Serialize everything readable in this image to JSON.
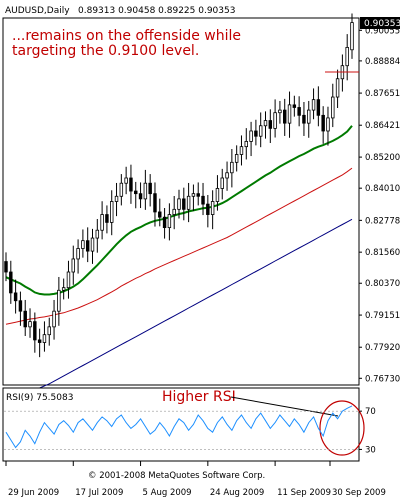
{
  "chart_data": [
    {
      "type": "candlestick",
      "symbol": "AUDUSD",
      "header": {
        "symbol_tf": "AUDUSD,Daily",
        "ohlc": "0.89313 0.90458 0.89225 0.90353"
      },
      "annotation": {
        "line1": "...remains on the offenside while",
        "line2": "targeting the 0.9100 level."
      },
      "last_price": "0.90353",
      "ylim": [
        0.7655,
        0.9045
      ],
      "y_ticks": [
        {
          "v": 0.90055,
          "label": "0.90055"
        },
        {
          "v": 0.88884,
          "label": "0.88884"
        },
        {
          "v": 0.87651,
          "label": "0.87651"
        },
        {
          "v": 0.86421,
          "label": "0.86421"
        },
        {
          "v": 0.852,
          "label": "0.85200"
        },
        {
          "v": 0.8401,
          "label": "0.84010"
        },
        {
          "v": 0.82778,
          "label": "0.82778"
        },
        {
          "v": 0.8156,
          "label": "0.81560"
        },
        {
          "v": 0.8037,
          "label": "0.80370"
        },
        {
          "v": 0.79151,
          "label": "0.79151"
        },
        {
          "v": 0.7792,
          "label": "0.77920"
        },
        {
          "v": 0.7673,
          "label": "0.76730"
        }
      ],
      "x_labels": [
        "29 Jun 2009",
        "17 Jul 2009",
        "5 Aug 2009",
        "24 Aug 2009",
        "11 Sep 2009",
        "30 Sep 2009"
      ],
      "x_label_index": [
        0,
        14,
        28,
        42,
        56,
        70
      ],
      "close": [
        0.808,
        0.8,
        0.797,
        0.793,
        0.787,
        0.789,
        0.782,
        0.781,
        0.784,
        0.787,
        0.793,
        0.801,
        0.802,
        0.808,
        0.813,
        0.817,
        0.82,
        0.816,
        0.821,
        0.824,
        0.83,
        0.827,
        0.835,
        0.837,
        0.842,
        0.844,
        0.839,
        0.838,
        0.836,
        0.842,
        0.838,
        0.831,
        0.829,
        0.825,
        0.83,
        0.832,
        0.836,
        0.832,
        0.837,
        0.838,
        0.837,
        0.834,
        0.83,
        0.835,
        0.84,
        0.844,
        0.846,
        0.85,
        0.853,
        0.856,
        0.858,
        0.862,
        0.86,
        0.864,
        0.866,
        0.863,
        0.869,
        0.87,
        0.865,
        0.872,
        0.871,
        0.868,
        0.865,
        0.87,
        0.874,
        0.868,
        0.862,
        0.867,
        0.875,
        0.882,
        0.887,
        0.894,
        0.9035
      ],
      "open": [
        0.812,
        0.808,
        0.8,
        0.797,
        0.793,
        0.787,
        0.789,
        0.782,
        0.781,
        0.784,
        0.787,
        0.793,
        0.801,
        0.802,
        0.808,
        0.813,
        0.817,
        0.82,
        0.816,
        0.821,
        0.824,
        0.83,
        0.827,
        0.835,
        0.837,
        0.842,
        0.844,
        0.839,
        0.838,
        0.836,
        0.842,
        0.838,
        0.831,
        0.829,
        0.825,
        0.83,
        0.832,
        0.836,
        0.832,
        0.837,
        0.838,
        0.837,
        0.834,
        0.83,
        0.835,
        0.84,
        0.844,
        0.846,
        0.85,
        0.853,
        0.856,
        0.858,
        0.862,
        0.86,
        0.864,
        0.866,
        0.863,
        0.869,
        0.87,
        0.865,
        0.872,
        0.871,
        0.868,
        0.865,
        0.87,
        0.874,
        0.868,
        0.862,
        0.867,
        0.875,
        0.882,
        0.887,
        0.8931
      ],
      "ma_green_label": "",
      "ma_green": [
        0.806,
        0.8052,
        0.8044,
        0.8036,
        0.8024,
        0.8014,
        0.8002,
        0.7996,
        0.7994,
        0.7994,
        0.7996,
        0.8,
        0.8006,
        0.8014,
        0.8024,
        0.8036,
        0.8052,
        0.807,
        0.8088,
        0.8106,
        0.8126,
        0.8146,
        0.8166,
        0.8186,
        0.8204,
        0.822,
        0.8234,
        0.8244,
        0.8252,
        0.8262,
        0.827,
        0.8276,
        0.828,
        0.8284,
        0.829,
        0.8296,
        0.8302,
        0.8306,
        0.8312,
        0.8316,
        0.832,
        0.8324,
        0.8326,
        0.833,
        0.8336,
        0.8344,
        0.8354,
        0.8366,
        0.8378,
        0.839,
        0.8402,
        0.8414,
        0.8426,
        0.8438,
        0.845,
        0.846,
        0.8472,
        0.8484,
        0.8494,
        0.8504,
        0.8514,
        0.8524,
        0.8532,
        0.8542,
        0.8552,
        0.856,
        0.8566,
        0.8574,
        0.8582,
        0.8592,
        0.8604,
        0.8618,
        0.864
      ],
      "ma_red": [
        0.788,
        0.7884,
        0.7888,
        0.7892,
        0.7896,
        0.79,
        0.7902,
        0.7906,
        0.7908,
        0.7912,
        0.7916,
        0.792,
        0.7924,
        0.793,
        0.7936,
        0.7942,
        0.795,
        0.7958,
        0.7966,
        0.7974,
        0.7984,
        0.7994,
        0.8004,
        0.8014,
        0.8026,
        0.8036,
        0.8046,
        0.8056,
        0.8064,
        0.8074,
        0.8082,
        0.8092,
        0.81,
        0.8108,
        0.8116,
        0.8124,
        0.8132,
        0.814,
        0.8148,
        0.8156,
        0.8164,
        0.8172,
        0.818,
        0.8188,
        0.8196,
        0.8204,
        0.8212,
        0.8222,
        0.8232,
        0.8242,
        0.8252,
        0.8262,
        0.8272,
        0.8282,
        0.8292,
        0.8302,
        0.8312,
        0.8322,
        0.8332,
        0.8342,
        0.8352,
        0.8362,
        0.8372,
        0.8382,
        0.8392,
        0.8402,
        0.8412,
        0.8422,
        0.8432,
        0.8442,
        0.8452,
        0.8464,
        0.8478
      ],
      "ma_blue": [
        0.758,
        0.7588,
        0.7596,
        0.7604,
        0.7612,
        0.762,
        0.7628,
        0.7636,
        0.7644,
        0.7652,
        0.7662,
        0.7672,
        0.7682,
        0.7692,
        0.7702,
        0.7712,
        0.7722,
        0.7732,
        0.7742,
        0.7752,
        0.7762,
        0.7772,
        0.7782,
        0.7792,
        0.7802,
        0.7812,
        0.7822,
        0.7832,
        0.7842,
        0.7852,
        0.7862,
        0.7872,
        0.7882,
        0.7892,
        0.7902,
        0.7912,
        0.7922,
        0.7932,
        0.7942,
        0.7952,
        0.7962,
        0.7972,
        0.7982,
        0.7992,
        0.8002,
        0.8012,
        0.8022,
        0.8032,
        0.8042,
        0.8052,
        0.8062,
        0.8072,
        0.8082,
        0.8092,
        0.8102,
        0.8112,
        0.8122,
        0.8132,
        0.8142,
        0.8152,
        0.8162,
        0.8172,
        0.8182,
        0.8192,
        0.8202,
        0.8212,
        0.8222,
        0.8232,
        0.8242,
        0.8252,
        0.8262,
        0.8272,
        0.8282
      ],
      "colors": {
        "green": "#007a00",
        "red": "#cc1111",
        "blue": "#000080",
        "candle": "#000000",
        "annotation": "#c00000"
      }
    },
    {
      "type": "line",
      "indicator": "RSI(9)",
      "header": "RSI(9) 75.5083",
      "annotation": "Higher RSI",
      "ylim": [
        20,
        90
      ],
      "y_ticks": [
        70,
        30
      ],
      "color": "#1e90ff",
      "values": [
        48,
        40,
        32,
        38,
        50,
        44,
        36,
        48,
        58,
        52,
        46,
        56,
        60,
        55,
        48,
        58,
        62,
        56,
        50,
        58,
        64,
        60,
        54,
        62,
        66,
        58,
        52,
        56,
        62,
        54,
        46,
        50,
        58,
        52,
        44,
        54,
        62,
        58,
        50,
        56,
        66,
        60,
        52,
        48,
        58,
        64,
        56,
        50,
        60,
        66,
        58,
        52,
        62,
        68,
        60,
        52,
        58,
        66,
        60,
        54,
        62,
        56,
        48,
        58,
        64,
        52,
        44,
        60,
        68,
        62,
        70,
        73,
        75.5
      ]
    }
  ],
  "copyright": "© 2001-2008 MetaQuotes Software Corp."
}
